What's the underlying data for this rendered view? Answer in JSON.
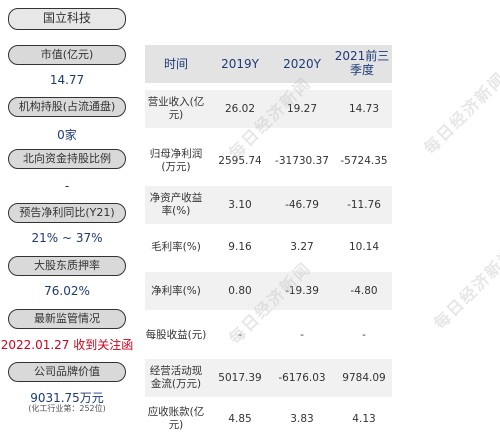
{
  "sidebar": {
    "company_name": "国立科技",
    "items": [
      {
        "label": "市值(亿元)",
        "value": "14.77"
      },
      {
        "label": "机构持股(占流通盘)",
        "value": "0家"
      },
      {
        "label": "北向资金持股比例",
        "value": "-"
      },
      {
        "label": "预告净利同比(Y21)",
        "value": "21% ~ 37%"
      },
      {
        "label": "大股东质押率",
        "value": "76.02%"
      },
      {
        "label": "最新监管情况",
        "value": "2022.01.27 收到关注函"
      },
      {
        "label": "公司品牌价值",
        "value": "9031.75万元",
        "note": "(化工行业第：252位)"
      }
    ]
  },
  "table": {
    "header": {
      "col0": "时间",
      "col1": "2019Y",
      "col2": "2020Y",
      "col3": "2021前三季度"
    },
    "rows": [
      {
        "label": "营业收入(亿元)",
        "v1": "26.02",
        "v2": "19.27",
        "v3": "14.73"
      },
      {
        "label": "归母净利润(万元)",
        "v1": "2595.74",
        "v2": "-31730.37",
        "v3": "-5724.35"
      },
      {
        "label": "净资产收益率(%)",
        "v1": "3.10",
        "v2": "-46.79",
        "v3": "-11.76"
      },
      {
        "label": "毛利率(%)",
        "v1": "9.16",
        "v2": "3.27",
        "v3": "10.14"
      },
      {
        "label": "净利率(%)",
        "v1": "0.80",
        "v2": "-19.39",
        "v3": "-4.80"
      },
      {
        "label": "每股收益(元)",
        "v1": "-",
        "v2": "-",
        "v3": "-"
      },
      {
        "label": "经营活动现金流(万元)",
        "v1": "5017.39",
        "v2": "-6176.03",
        "v3": "9784.09"
      },
      {
        "label": "应收账款(亿元)",
        "v1": "4.85",
        "v2": "3.83",
        "v3": "4.13"
      }
    ]
  },
  "watermark": "每日经济新闻",
  "colors": {
    "value_blue": "#1d3a78",
    "alert_red": "#d0021b",
    "pill_fill": "#d9d9d9"
  }
}
